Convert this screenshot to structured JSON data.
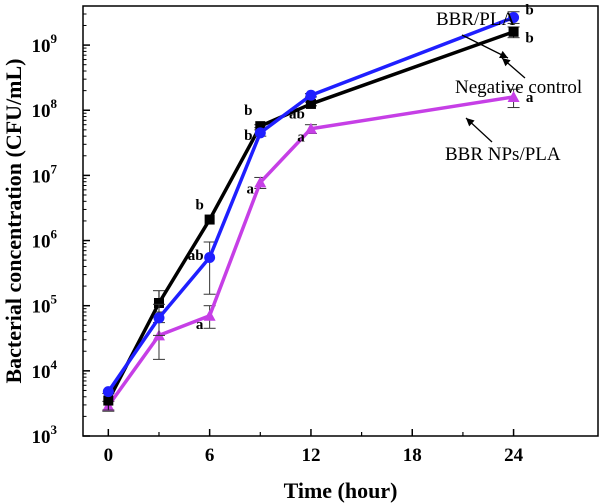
{
  "chart_data": {
    "type": "line",
    "title": "",
    "xlabel": "Time (hour)",
    "ylabel": "Bacterial concentration (CFU/mL)",
    "xlim": [
      -1.5,
      29
    ],
    "x_ticks": [
      0,
      6,
      12,
      18,
      24
    ],
    "ylim_log10": [
      3,
      9.6
    ],
    "y_ticks": [
      {
        "base": "10",
        "exp": "3",
        "log": 3
      },
      {
        "base": "10",
        "exp": "4",
        "log": 4
      },
      {
        "base": "10",
        "exp": "5",
        "log": 5
      },
      {
        "base": "10",
        "exp": "6",
        "log": 6
      },
      {
        "base": "10",
        "exp": "7",
        "log": 7
      },
      {
        "base": "10",
        "exp": "8",
        "log": 8
      },
      {
        "base": "10",
        "exp": "9",
        "log": 9
      }
    ],
    "y_scale": "log",
    "series": [
      {
        "name": "Negative control",
        "color": "#000000",
        "marker": "square",
        "x": [
          0,
          3,
          6,
          9,
          12,
          24
        ],
        "values": [
          3500,
          110000,
          2100000,
          57000000,
          125000000,
          1600000000
        ],
        "err_low": [
          1000,
          30000,
          0,
          3000000,
          8000000,
          300000000
        ],
        "err_high": [
          1000,
          60000,
          0,
          3000000,
          8000000,
          300000000
        ]
      },
      {
        "name": "BBR/PLA",
        "color": "#1f1fff",
        "marker": "circle",
        "x": [
          0,
          3,
          6,
          9,
          12,
          24
        ],
        "values": [
          4800,
          65000,
          550000,
          45000000,
          170000000,
          2650000000
        ],
        "err_low": [
          0,
          30000,
          400000,
          5000000,
          10000000,
          500000000
        ],
        "err_high": [
          0,
          40000,
          400000,
          5000000,
          10000000,
          600000000
        ]
      },
      {
        "name": "BBR NPs/PLA",
        "color": "#c63fe6",
        "marker": "triangle",
        "x": [
          0,
          3,
          6,
          9,
          12,
          24
        ],
        "values": [
          2900,
          35000,
          70000,
          7800000,
          52000000,
          160000000
        ],
        "err_low": [
          500,
          20000,
          25000,
          1500000,
          8000000,
          50000000
        ],
        "err_high": [
          500,
          20000,
          30000,
          1500000,
          8000000,
          50000000
        ]
      }
    ],
    "significance_labels": [
      {
        "text": "b",
        "x": 6,
        "log": 6.55,
        "dx": -10
      },
      {
        "text": "ab",
        "x": 6,
        "log": 5.78,
        "dx": -14
      },
      {
        "text": "a",
        "x": 6,
        "log": 4.72,
        "dx": -10
      },
      {
        "text": "b",
        "x": 9,
        "log": 8.0,
        "dx": -12
      },
      {
        "text": "b",
        "x": 9,
        "log": 7.62,
        "dx": -12
      },
      {
        "text": "a",
        "x": 9,
        "log": 6.8,
        "dx": -10
      },
      {
        "text": "ab",
        "x": 12,
        "log": 7.95,
        "dx": -14
      },
      {
        "text": "a",
        "x": 12,
        "log": 7.6,
        "dx": -10
      },
      {
        "text": "b",
        "x": 24,
        "log": 9.55,
        "dx": 16
      },
      {
        "text": "b",
        "x": 24,
        "log": 9.12,
        "dx": 16
      },
      {
        "text": "a",
        "x": 24,
        "log": 8.2,
        "dx": 16
      }
    ],
    "annotations": [
      {
        "text": "BBR/PLA",
        "series": "BBR/PLA"
      },
      {
        "text": "Negative control",
        "series": "Negative control"
      },
      {
        "text": "BBR NPs/PLA",
        "series": "BBR NPs/PLA"
      }
    ]
  }
}
